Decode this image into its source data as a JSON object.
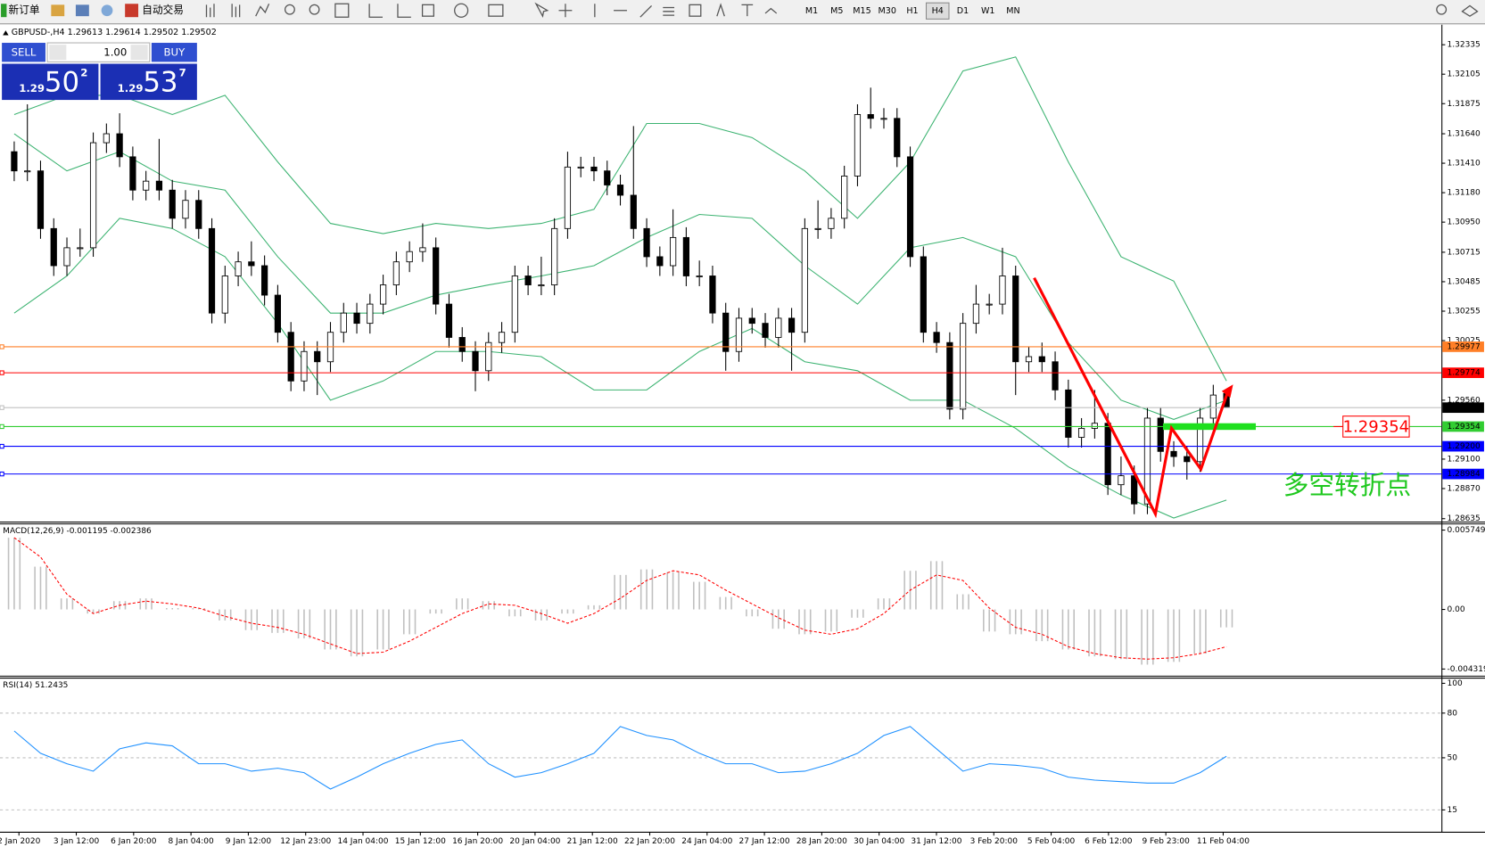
{
  "toolbar": {
    "new_order": "新订单",
    "auto_trading": "自动交易",
    "timeframes": [
      "M1",
      "M5",
      "M15",
      "M30",
      "H1",
      "H4",
      "D1",
      "W1",
      "MN"
    ],
    "active_timeframe": "H4"
  },
  "trade_panel": {
    "sell": "SELL",
    "buy": "BUY",
    "lot": "1.00",
    "sell_price": {
      "prefix": "1.29",
      "big": "50",
      "small": "2"
    },
    "buy_price": {
      "prefix": "1.29",
      "big": "53",
      "small": "7"
    }
  },
  "chart_data": [
    {
      "type": "candlestick",
      "title": "GBPUSD-,H4 1.29613 1.29614 1.29502 1.29502",
      "up_color": "#ffffff",
      "down_color": "#000000",
      "candles": [
        [
          1.315,
          1.3158,
          1.3127,
          1.3135
        ],
        [
          1.3135,
          1.3187,
          1.3127,
          1.3135
        ],
        [
          1.3135,
          1.3143,
          1.3082,
          1.309
        ],
        [
          1.309,
          1.3098,
          1.3053,
          1.3061
        ],
        [
          1.3061,
          1.3083,
          1.3053,
          1.3075
        ],
        [
          1.3075,
          1.309,
          1.3068,
          1.3075
        ],
        [
          1.3075,
          1.3165,
          1.3068,
          1.3157
        ],
        [
          1.3157,
          1.3172,
          1.3149,
          1.3164
        ],
        [
          1.3164,
          1.318,
          1.3138,
          1.3146
        ],
        [
          1.3146,
          1.3154,
          1.3112,
          1.312
        ],
        [
          1.312,
          1.3135,
          1.3112,
          1.3127
        ],
        [
          1.3127,
          1.316,
          1.3112,
          1.312
        ],
        [
          1.312,
          1.3128,
          1.309,
          1.3098
        ],
        [
          1.3098,
          1.312,
          1.309,
          1.3112
        ],
        [
          1.3112,
          1.312,
          1.3082,
          1.309
        ],
        [
          1.309,
          1.3098,
          1.3016,
          1.3024
        ],
        [
          1.3024,
          1.3061,
          1.3016,
          1.3053
        ],
        [
          1.3053,
          1.3072,
          1.3045,
          1.3064
        ],
        [
          1.3064,
          1.308,
          1.3053,
          1.3061
        ],
        [
          1.3061,
          1.3069,
          1.303,
          1.3038
        ],
        [
          1.3038,
          1.3046,
          1.3001,
          1.3009
        ],
        [
          1.3009,
          1.3017,
          1.2963,
          1.2971
        ],
        [
          1.2971,
          1.3002,
          1.2963,
          1.2994
        ],
        [
          1.2994,
          1.3002,
          1.296,
          1.2986
        ],
        [
          1.2986,
          1.3017,
          1.2978,
          1.3009
        ],
        [
          1.3009,
          1.3032,
          1.3001,
          1.3024
        ],
        [
          1.3024,
          1.3032,
          1.3008,
          1.3016
        ],
        [
          1.3016,
          1.3039,
          1.3008,
          1.3031
        ],
        [
          1.3031,
          1.3054,
          1.3023,
          1.3046
        ],
        [
          1.3046,
          1.3072,
          1.3038,
          1.3064
        ],
        [
          1.3064,
          1.308,
          1.3056,
          1.3072
        ],
        [
          1.3072,
          1.3094,
          1.3064,
          1.3075
        ],
        [
          1.3075,
          1.3083,
          1.3023,
          1.3031
        ],
        [
          1.3031,
          1.3039,
          1.2997,
          1.3005
        ],
        [
          1.3005,
          1.3013,
          1.2986,
          1.2994
        ],
        [
          1.2994,
          1.3002,
          1.2963,
          1.2979
        ],
        [
          1.2979,
          1.3009,
          1.2971,
          1.3001
        ],
        [
          1.3001,
          1.3017,
          1.2993,
          1.3009
        ],
        [
          1.3009,
          1.3061,
          1.3001,
          1.3053
        ],
        [
          1.3053,
          1.3061,
          1.3038,
          1.3046
        ],
        [
          1.3046,
          1.3068,
          1.3038,
          1.3046
        ],
        [
          1.3046,
          1.3098,
          1.3038,
          1.309
        ],
        [
          1.309,
          1.315,
          1.3082,
          1.3138
        ],
        [
          1.3138,
          1.3146,
          1.313,
          1.3138
        ],
        [
          1.3138,
          1.3146,
          1.3127,
          1.3135
        ],
        [
          1.3135,
          1.3143,
          1.3116,
          1.3124
        ],
        [
          1.3124,
          1.3132,
          1.3108,
          1.3116
        ],
        [
          1.3116,
          1.317,
          1.3082,
          1.309
        ],
        [
          1.309,
          1.3098,
          1.306,
          1.3068
        ],
        [
          1.3068,
          1.3076,
          1.3053,
          1.3061
        ],
        [
          1.3061,
          1.3105,
          1.3053,
          1.3083
        ],
        [
          1.3083,
          1.3091,
          1.3045,
          1.3053
        ],
        [
          1.3053,
          1.3065,
          1.3045,
          1.3053
        ],
        [
          1.3053,
          1.3061,
          1.3016,
          1.3024
        ],
        [
          1.3024,
          1.3032,
          1.2979,
          1.2994
        ],
        [
          1.2994,
          1.3028,
          1.2986,
          1.302
        ],
        [
          1.302,
          1.3028,
          1.3008,
          1.3016
        ],
        [
          1.3016,
          1.3024,
          1.2997,
          1.3005
        ],
        [
          1.3005,
          1.3028,
          1.2997,
          1.302
        ],
        [
          1.302,
          1.3028,
          1.2979,
          1.3009
        ],
        [
          1.3009,
          1.3098,
          1.3001,
          1.309
        ],
        [
          1.309,
          1.3112,
          1.3082,
          1.309
        ],
        [
          1.309,
          1.3106,
          1.3082,
          1.3098
        ],
        [
          1.3098,
          1.3139,
          1.309,
          1.3131
        ],
        [
          1.3131,
          1.3187,
          1.3123,
          1.3179
        ],
        [
          1.3179,
          1.32,
          1.3168,
          1.3176
        ],
        [
          1.3176,
          1.3184,
          1.3168,
          1.3176
        ],
        [
          1.3176,
          1.3184,
          1.3138,
          1.3146
        ],
        [
          1.3146,
          1.3154,
          1.306,
          1.3068
        ],
        [
          1.3068,
          1.3076,
          1.3001,
          1.3009
        ],
        [
          1.3009,
          1.3017,
          1.2993,
          1.3001
        ],
        [
          1.3001,
          1.3009,
          1.2941,
          1.2949
        ],
        [
          1.2949,
          1.3024,
          1.2941,
          1.3016
        ],
        [
          1.3016,
          1.3046,
          1.3008,
          1.3031
        ],
        [
          1.3031,
          1.3039,
          1.3023,
          1.3031
        ],
        [
          1.3031,
          1.3075,
          1.3023,
          1.3053
        ],
        [
          1.3053,
          1.3061,
          1.296,
          1.2986
        ],
        [
          1.2986,
          1.2998,
          1.2978,
          1.299
        ],
        [
          1.299,
          1.3001,
          1.2978,
          1.2986
        ],
        [
          1.2986,
          1.2994,
          1.2956,
          1.2964
        ],
        [
          1.2964,
          1.2972,
          1.2919,
          1.2927
        ],
        [
          1.2927,
          1.2942,
          1.2919,
          1.2934
        ],
        [
          1.2934,
          1.2964,
          1.2926,
          1.2938
        ],
        [
          1.2938,
          1.2946,
          1.2882,
          1.289
        ],
        [
          1.289,
          1.2912,
          1.2882,
          1.2897
        ],
        [
          1.2897,
          1.2905,
          1.2867,
          1.2875
        ],
        [
          1.2875,
          1.295,
          1.2867,
          1.2942
        ],
        [
          1.2942,
          1.295,
          1.2908,
          1.2916
        ],
        [
          1.2916,
          1.2924,
          1.2904,
          1.2912
        ],
        [
          1.2912,
          1.292,
          1.2894,
          1.2908
        ],
        [
          1.2908,
          1.295,
          1.29,
          1.2942
        ],
        [
          1.2942,
          1.2968,
          1.2934,
          1.296
        ],
        [
          1.29613,
          1.29614,
          1.29502,
          1.29502
        ]
      ],
      "band_color": "#3cb371",
      "upper_band": [
        1.3179,
        1.3194,
        1.3194,
        1.3179,
        1.3194,
        1.3142,
        1.3094,
        1.3086,
        1.3094,
        1.309,
        1.3094,
        1.3105,
        1.3172,
        1.3172,
        1.3161,
        1.3135,
        1.3098,
        1.3142,
        1.3213,
        1.3224,
        1.3142,
        1.3068,
        1.3049,
        1.2971
      ],
      "middle_band": [
        1.3164,
        1.3135,
        1.315,
        1.3127,
        1.312,
        1.3068,
        1.3024,
        1.3024,
        1.3038,
        1.3046,
        1.3053,
        1.3061,
        1.3083,
        1.3101,
        1.3098,
        1.3061,
        1.3031,
        1.3075,
        1.3083,
        1.3068,
        1.3001,
        1.2956,
        1.2941,
        1.2956
      ],
      "lower_band": [
        1.3024,
        1.3053,
        1.3098,
        1.309,
        1.3068,
        1.3016,
        1.2956,
        1.2971,
        1.2994,
        1.2994,
        1.299,
        1.2964,
        1.2964,
        1.2994,
        1.3012,
        1.2986,
        1.2979,
        1.2956,
        1.2956,
        1.2934,
        1.2904,
        1.2882,
        1.2864,
        1.2878
      ],
      "ylim": [
        1.28635,
        1.32335
      ],
      "yticks": [
        1.32335,
        1.32105,
        1.31875,
        {
          "value": 1.3164,
          "label": "1.31640"
        },
        {
          "value": 1.3141,
          "label": "1.31410"
        },
        {
          "value": 1.3118,
          "label": "1.31180"
        },
        {
          "value": 1.3095,
          "label": "1.30950"
        },
        1.30715,
        1.30485,
        1.30255,
        1.30025,
        {
          "value": 1.2956,
          "label": "1.29560"
        },
        {
          "value": 1.291,
          "label": "1.29100"
        },
        {
          "value": 1.2887,
          "label": "1.28870"
        },
        1.28635
      ],
      "hlines": [
        {
          "value": 1.29977,
          "color": "#ff7f27"
        },
        {
          "value": 1.29774,
          "color": "#ff0000"
        },
        {
          "value": 1.29502,
          "color": "#c0c0c0"
        },
        {
          "value": 1.29354,
          "color": "#32cd32"
        },
        {
          "value": 1.292,
          "label": "1.29200",
          "color": "#0000ff"
        },
        {
          "value": 1.28984,
          "color": "#0000ff"
        }
      ],
      "annotation": "多空转折点"
    },
    {
      "type": "macd",
      "title": "MACD(12,26,9) -0.001195 -0.002386",
      "color": "#c0c0c0",
      "signal_color": "#ff0000",
      "histogram": [
        0.0052,
        0.0031,
        0.0008,
        -0.0003,
        0.0006,
        0.0008,
        0.0001,
        0.0001,
        -0.0008,
        -0.0015,
        -0.0017,
        -0.0021,
        -0.0029,
        -0.0034,
        -0.0029,
        -0.0018,
        -0.0003,
        0.0008,
        0.0006,
        -0.0005,
        -0.0008,
        -0.0003,
        0.0003,
        0.0025,
        0.0029,
        0.0027,
        0.002,
        0.0009,
        -0.0005,
        -0.0014,
        -0.0018,
        -0.0016,
        -0.0006,
        0.0008,
        0.0028,
        0.0035,
        0.0011,
        -0.0016,
        -0.0018,
        -0.0023,
        -0.0029,
        -0.0034,
        -0.0036,
        -0.004,
        -0.0038,
        -0.0032,
        -0.0013
      ],
      "signal": [
        0.0052,
        0.0038,
        0.0011,
        -0.0003,
        0.0003,
        0.0006,
        0.0004,
        0.0001,
        -0.0005,
        -0.001,
        -0.0013,
        -0.0018,
        -0.0025,
        -0.0032,
        -0.0031,
        -0.0023,
        -0.0013,
        -0.0003,
        0.0004,
        0.0003,
        -0.0003,
        -0.001,
        -0.0003,
        0.0008,
        0.0021,
        0.0028,
        0.0025,
        0.0014,
        0.0004,
        -0.0006,
        -0.0015,
        -0.0018,
        -0.0014,
        -0.0003,
        0.0014,
        0.0025,
        0.0021,
        0.0001,
        -0.0013,
        -0.0018,
        -0.0027,
        -0.0032,
        -0.0035,
        -0.0036,
        -0.0035,
        -0.0032,
        -0.0027
      ],
      "ylim": [
        -0.004319,
        0.005749
      ],
      "yticks": [
        0.005749,
        {
          "value": 0,
          "label": "0.00"
        },
        -0.004319
      ]
    },
    {
      "type": "rsi",
      "title": "RSI(14) 51.2435",
      "color": "#1e90ff",
      "values": [
        68,
        53,
        46,
        41,
        56,
        60,
        58,
        46,
        46,
        41,
        43,
        40,
        29,
        37,
        46,
        53,
        59,
        62,
        46,
        37,
        40,
        46,
        53,
        71,
        65,
        62,
        53,
        46,
        46,
        40,
        41,
        46,
        53,
        65,
        71,
        56,
        41,
        46,
        45,
        43,
        37,
        35,
        34,
        33,
        33,
        40,
        51
      ],
      "ylim": [
        0,
        100
      ],
      "yticks": [
        100,
        80,
        50,
        15
      ]
    }
  ],
  "time_axis": [
    "2 Jan 2020",
    "3 Jan 12:00",
    "6 Jan 20:00",
    "8 Jan 04:00",
    "9 Jan 12:00",
    "12 Jan 23:00",
    "14 Jan 04:00",
    "15 Jan 12:00",
    "16 Jan 20:00",
    "20 Jan 04:00",
    "21 Jan 12:00",
    "22 Jan 20:00",
    "24 Jan 04:00",
    "27 Jan 12:00",
    "28 Jan 20:00",
    "30 Jan 04:00",
    "31 Jan 12:00",
    "3 Feb 20:00",
    "5 Feb 04:00",
    "6 Feb 12:00",
    "9 Feb 23:00",
    "11 Feb 04:00"
  ]
}
